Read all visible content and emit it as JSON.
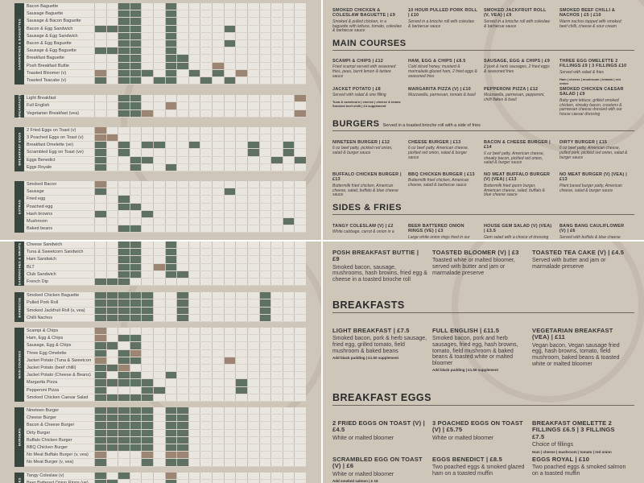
{
  "grid_top": [
    {
      "side": "SANDWICHES & BAGUETTES",
      "rows": [
        {
          "label": "Bacon Baguette",
          "cells": "..gg..g..........."
        },
        {
          "label": "Sausage Baguette",
          "cells": "..gg..g..........."
        },
        {
          "label": "Sausage & Bacon Baguette",
          "cells": "..gg..g..........."
        },
        {
          "label": "Bacon & Egg Sandwich",
          "cells": "gggg..g....g......"
        },
        {
          "label": "Sausage & Egg Sandwich",
          "cells": "..gg..g..........."
        },
        {
          "label": "Bacon & Egg Baguette",
          "cells": "..gg..g....g......"
        },
        {
          "label": "Sausage & Egg Baguette",
          "cells": "gggg..g..........."
        },
        {
          "label": "Breakfast Baguette",
          "cells": "..gg..gg.........."
        },
        {
          "label": "Posh Breakfast Buttie",
          "cells": "..gg..gg..b......."
        },
        {
          "label": "Toasted Bloomer (v)",
          "cells": "b.ggg.g.g.g.b....."
        },
        {
          "label": "Toasted Teacake (v)",
          "cells": "g.gg.gg..g.g......"
        }
      ]
    },
    {
      "side": "BREAKFASTS",
      "rows": [
        {
          "label": "Light Breakfast",
          "cells": "..gg.............b"
        },
        {
          "label": "Full English",
          "cells": "..gg..b..........."
        },
        {
          "label": "Vegetarian Breakfast (vea)",
          "cells": "..ggb............b"
        }
      ]
    },
    {
      "side": "BREAKFAST EGGS",
      "rows": [
        {
          "label": "2 Fried Eggs on Toast (v)",
          "cells": "b................."
        },
        {
          "label": "3 Poached Eggs on Toast (v)",
          "cells": "bb................"
        },
        {
          "label": "Breakfast Omelette (ve)",
          "cells": "g.g.gg..g....g..g."
        },
        {
          "label": "Scrambled Egg on Toast (ve)",
          "cells": "g.g..........g..g."
        },
        {
          "label": "Eggs Benedict",
          "cells": "g..gg..........g.g"
        },
        {
          "label": "Eggs Royale",
          "cells": "g..g..g..........."
        }
      ]
    },
    {
      "side": "EXTRAS",
      "rows": [
        {
          "label": "Smoked Bacon",
          "cells": "b................."
        },
        {
          "label": "Sausage",
          "cells": "g..........g......"
        },
        {
          "label": "Fried egg",
          "cells": "..g..............."
        },
        {
          "label": "Poached egg",
          "cells": "..gg.............."
        },
        {
          "label": "Hash browns",
          "cells": "g...g............."
        },
        {
          "label": "Mushroom",
          "cells": "................g."
        },
        {
          "label": "Baked beans",
          "cells": "..gg.............."
        }
      ]
    }
  ],
  "grid_bottom": [
    {
      "side": "SANDWICHES & WRAPS",
      "rows": [
        {
          "label": "Cheese Sandwich",
          "cells": "..gg..g..........."
        },
        {
          "label": "Tuna & Sweetcorn Sandwich",
          "cells": "..gg..g..........."
        },
        {
          "label": "Ham Sandwich",
          "cells": "..gg..g..........."
        },
        {
          "label": "BLT",
          "cells": "..gg.bg..........."
        },
        {
          "label": "Club Sandwich",
          "cells": "..gg..gg.........."
        },
        {
          "label": "French Dip",
          "cells": "ggg..............."
        }
      ]
    },
    {
      "side": "BARBECUE",
      "rows": [
        {
          "label": "Smoked Chicken Baguette",
          "cells": "ggggg..g......g..."
        },
        {
          "label": "Pulled Pork Roll",
          "cells": "ggggg..g......g..."
        },
        {
          "label": "Smoked Jackfruit Roll (v, vea)",
          "cells": "ggggg..g......g..."
        },
        {
          "label": "Chilli Nachos",
          "cells": "ggggg..g......g..."
        }
      ]
    },
    {
      "side": "MAIN COURSES",
      "rows": [
        {
          "label": "Scampi & Chips",
          "cells": "b................."
        },
        {
          "label": "Ham, Egg & Chips",
          "cells": "b.gg.............."
        },
        {
          "label": "Sausage, Egg & Chips",
          "cells": "gg.g.............."
        },
        {
          "label": "Three Egg Omelette",
          "cells": "g.gb.............."
        },
        {
          "label": "Jacket Potato (Tuna & Sweetcorn)",
          "cells": "b.gg.......b......"
        },
        {
          "label": "Jacket Potato (beef chilli)",
          "cells": "ggb..............."
        },
        {
          "label": "Jacket Potato (Cheese & Beans)",
          "cells": "g.gg..g..........."
        },
        {
          "label": "Margarita Pizza",
          "cells": "ggggg.......g....."
        },
        {
          "label": "Pepperoni Pizza",
          "cells": "g...gg......g....."
        },
        {
          "label": "Smoked Chicken Caesar Salad",
          "cells": "ggggg............."
        }
      ]
    },
    {
      "side": "BURGERS",
      "rows": [
        {
          "label": "Nineteen Burger",
          "cells": "ggggg.gg.........."
        },
        {
          "label": "Cheese Burger",
          "cells": "ggggg.gg.........."
        },
        {
          "label": "Bacon & Cheese Burger",
          "cells": "ggggg.gg.........."
        },
        {
          "label": "Dirty Burger",
          "cells": "ggggg.gg.........."
        },
        {
          "label": "Buffalo Chicken Burger",
          "cells": "ggggg.gg.........."
        },
        {
          "label": "BBQ Chicken Burger",
          "cells": "ggggg.gg.........."
        },
        {
          "label": "No Meat Buffalo Burger (v, vea)",
          "cells": "b...b.bb.........."
        },
        {
          "label": "No Meat Burger (v, vea)",
          "cells": "g...g.gg.........."
        }
      ]
    },
    {
      "side": "SIDES",
      "rows": [
        {
          "label": "Tangy Coleslaw (v)",
          "cells": "g.g...b..........."
        },
        {
          "label": "Beer Battered Onion Rings (ve)",
          "cells": "gg....g..........."
        },
        {
          "label": "House Gem Salad (Blue Cheese)",
          "cells": "bb................"
        }
      ]
    }
  ],
  "menu_top": {
    "row1": [
      {
        "name": "SMOKED CHICKEN & COLESLAW BAGUETTE | £9",
        "desc": "Smoked & pulled chicken, in a baguette with lettuce, tomato, coleslaw & barbecue sauce"
      },
      {
        "name": "10 HOUR PULLED PORK ROLL | £10",
        "desc": "Served in a brioche roll with coleslaw & barbecue sauce"
      },
      {
        "name": "SMOKED JACKFRUIT ROLL (V, VEA) | £9",
        "desc": "Served in a brioche roll with coleslaw & barbecue sauce"
      },
      {
        "name": "SMOKED BEEF CHILLI & NACHOS | £5 | £10",
        "desc": "Warm nachos topped with smoked beef chilli, cheese & sour cream"
      }
    ],
    "main_title": "MAIN COURSES",
    "main": [
      {
        "name": "SCAMPI & CHIPS | £12",
        "desc": "Fried scampi served with seasoned fries, peas, burnt lemon & tartare sauce"
      },
      {
        "name": "HAM, EGG & CHIPS | £8.5",
        "desc": "Cold sliced honey, mustard & marmalade glazed ham, 2 fried eggs & seasoned fries"
      },
      {
        "name": "SAUSAGE, EGG & CHIPS | £9",
        "desc": "2 pork & herb sausages, 2 fried eggs & seasoned fries"
      },
      {
        "name": "THREE EGG OMELETTE 2 FILLINGS £9 | 3 FILLINGS £10",
        "desc": "Served with salad & fries",
        "extra": "Ham | cheese | mushroom | tomato | red onion"
      },
      {
        "name": "JACKET POTATO | £8",
        "desc": "Served with salad & one filling",
        "extra": "Tuna & sweetcorn | cheese | cheese & beans Smoked beef chilli | £4 supplement"
      },
      {
        "name": "MARGARITA PIZZA (V) | £10",
        "desc": "Mozzarella, parmesan, tomato & basil"
      },
      {
        "name": "PEPPERONI PIZZA | £12",
        "desc": "Mozzarella, parmesan, pepperoni, chilli flakes & basil"
      },
      {
        "name": "SMOKED CHICKEN CAESAR SALAD | £9",
        "desc": "Baby gem lettuce, grilled smoked chicken, streaky bacon, croutons & parmesan cheese dressed with our house caesar dressing"
      }
    ],
    "burgers_title": "BURGERS",
    "burgers_sub": "Served in a toasted brioche roll with a side of fries",
    "burgers": [
      {
        "name": "NINETEEN BURGER | £12",
        "desc": "6 oz beef patty, pickled red onion, salad & burger sauce"
      },
      {
        "name": "CHEESE BURGER | £13",
        "desc": "6 oz beef patty, American cheese, pickled red onion, salad & burger sauce"
      },
      {
        "name": "BACON & CHEESE BURGER | £14",
        "desc": "6 oz beef patty, American cheese, streaky bacon, pickled red onion, salad & burger sauce"
      },
      {
        "name": "DIRTY BURGER | £15",
        "desc": "6 oz beef patty, American cheese, pulled pork, pickled red onion, salad & burger sauce"
      },
      {
        "name": "BUFFALO CHICKEN BURGER | £13",
        "desc": "Buttermilk fried chicken, American cheese, salad, buffalo & blue cheese sauce"
      },
      {
        "name": "BBQ CHICKEN BURGER | £13",
        "desc": "Buttermilk fried chicken, American cheese, salad & barbecue sauce"
      },
      {
        "name": "NO MEAT BUFFALO BURGER (V) (VEA) | £13",
        "desc": "Buttermilk fried quorn burger, American cheese, salad, buffalo & blue cheese sauce"
      },
      {
        "name": "NO MEAT BURGER (V) (VEA) | £13",
        "desc": "Plant based burger patty, American cheese, salad & burger sauce"
      }
    ],
    "sides_title": "SIDES & FRIES",
    "sides": [
      {
        "name": "TANGY COLESLAW (V) | £2",
        "desc": "White cabbage, carrot & onion in a"
      },
      {
        "name": "BEER BATTERED ONION RINGS (VE) | £3",
        "desc": "Large white onion rings fried in our"
      },
      {
        "name": "HOUSE GEM SALAD (V) (VEA) | £3.5",
        "desc": "Gem salad with a choice of dressing"
      },
      {
        "name": "BANG BANG CAULIFLOWER (V) | £6",
        "desc": "Served with buffalo & blue cheese"
      }
    ]
  },
  "menu_bottom": {
    "row1": [
      {
        "name": "POSH BREAKFAST BUTTIE | £9",
        "desc": "Smoked bacon, sausage, mushrooms, hash browns, fried egg & cheese in a toasted brioche roll"
      },
      {
        "name": "TOASTED BLOOMER (V) | £3",
        "desc": "Toasted white or malted bloomer, served with butter and jam or marmalade preserve"
      },
      {
        "name": "TOASTED TEA CAKE (V) | £4.5",
        "desc": "Served with butter and jam or marmalade preserve"
      }
    ],
    "breakfasts_title": "BREAKFASTS",
    "breakfasts": [
      {
        "name": "LIGHT BREAKFAST | £7.5",
        "desc": "Smoked bacon, pork & herb sausage, fried egg, grilled tomato, field mushroom & baked beans",
        "extra": "Add black pudding | £1.50 supplement"
      },
      {
        "name": "FULL ENGLISH | £11.5",
        "desc": "Smoked bacon, pork and herb sausages, fried egg, hash browns, tomato, field mushroom & baked beans & toasted white or malted bloomer",
        "extra": "Add black pudding | £1.50 supplement"
      },
      {
        "name": "VEGETARIAN BREAKFAST (VEA) | £11",
        "desc": "Vegan bacon, Vegan sausage fried egg, hash browns, tomato, field mushroom, baked beans & toasted white or malted bloomer"
      }
    ],
    "eggs_title": "BREAKFAST EGGS",
    "eggs": [
      {
        "name": "2 FRIED EGGS ON TOAST (V) | £4.5",
        "desc": "White or malted bloomer"
      },
      {
        "name": "3 POACHED EGGS ON TOAST (V) | £5.75",
        "desc": "White or malted bloomer"
      },
      {
        "name": "BREAKFAST OMELETTE 2 FILLINGS £6.5 | 3 FILLINGS £7.5",
        "desc": "Choice of fillings",
        "extra": "Ham | cheese | mushroom | tomato | red onion"
      },
      {
        "name": "SCRAMBLED EGG ON TOAST (V) | £6",
        "desc": "White or malted bloomer",
        "extra": "Add smoked salmon | £ 16"
      },
      {
        "name": "EGGS BENEDICT | £8.5",
        "desc": "Two poached eggs & smoked glazed ham on a toasted muffin"
      },
      {
        "name": "EGGS ROYAL | £10",
        "desc": "Two poached eggs & smoked salmon on a toasted muffin"
      }
    ]
  }
}
